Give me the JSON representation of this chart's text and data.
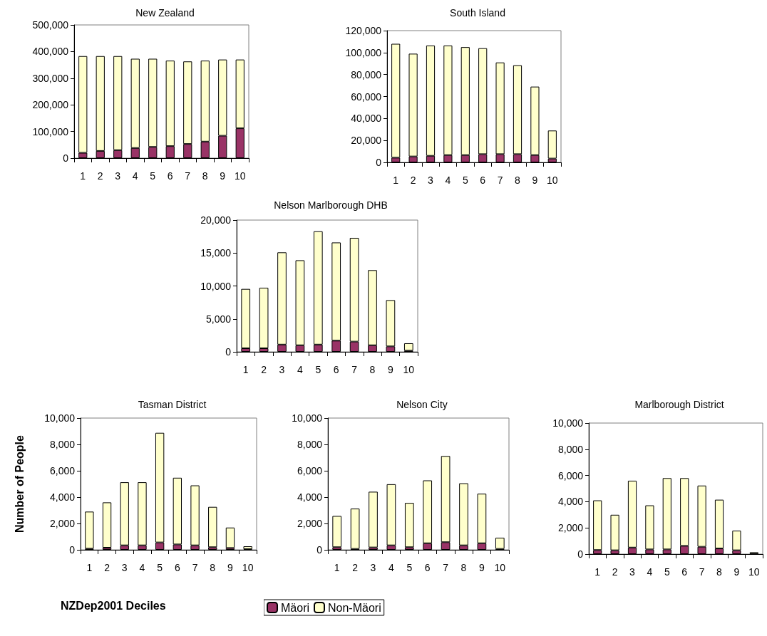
{
  "chart_data": [
    {
      "type": "bar",
      "title": "New Zealand",
      "stacked": true,
      "categories": [
        "1",
        "2",
        "3",
        "4",
        "5",
        "6",
        "7",
        "8",
        "9",
        "10"
      ],
      "ylim": [
        0,
        500000
      ],
      "yticks": [
        {
          "value": 0,
          "label": "0"
        },
        {
          "value": 100000,
          "label": "100,000"
        },
        {
          "value": 200000,
          "label": "200,000"
        },
        {
          "value": 300000,
          "label": "300,000"
        },
        {
          "value": 400000,
          "label": "400,000"
        },
        {
          "value": 500000,
          "label": "500,000"
        }
      ],
      "grid": false,
      "series": [
        {
          "color": "#993366",
          "values": [
            20000,
            27000,
            30000,
            38000,
            42000,
            45000,
            53000,
            62000,
            84000,
            112000
          ]
        },
        {
          "color": "#ffffcc",
          "values": [
            363000,
            356000,
            353000,
            335000,
            331000,
            321000,
            310000,
            304000,
            286000,
            258000
          ]
        }
      ]
    },
    {
      "type": "bar",
      "title": "South Island",
      "stacked": true,
      "categories": [
        "1",
        "2",
        "3",
        "4",
        "5",
        "6",
        "7",
        "8",
        "9",
        "10"
      ],
      "ylim": [
        0,
        120000
      ],
      "yticks": [
        {
          "value": 0,
          "label": "0"
        },
        {
          "value": 20000,
          "label": "20,000"
        },
        {
          "value": 40000,
          "label": "40,000"
        },
        {
          "value": 60000,
          "label": "60,000"
        },
        {
          "value": 80000,
          "label": "80,000"
        },
        {
          "value": 100000,
          "label": "100,000"
        },
        {
          "value": 120000,
          "label": "120,000"
        }
      ],
      "grid": false,
      "series": [
        {
          "color": "#993366",
          "values": [
            4300,
            5400,
            6000,
            6700,
            6700,
            7500,
            7500,
            7500,
            6700,
            3500
          ]
        },
        {
          "color": "#ffffcc",
          "values": [
            103700,
            93600,
            100500,
            99800,
            98300,
            96500,
            83500,
            81000,
            62300,
            25500
          ]
        }
      ]
    },
    {
      "type": "bar",
      "title": "Nelson Marlborough DHB",
      "stacked": true,
      "categories": [
        "1",
        "2",
        "3",
        "4",
        "5",
        "6",
        "7",
        "8",
        "9",
        "10"
      ],
      "ylim": [
        0,
        20000
      ],
      "yticks": [
        {
          "value": 0,
          "label": "0"
        },
        {
          "value": 5000,
          "label": "5,000"
        },
        {
          "value": 10000,
          "label": "10,000"
        },
        {
          "value": 15000,
          "label": "15,000"
        },
        {
          "value": 20000,
          "label": "20,000"
        }
      ],
      "grid": false,
      "series": [
        {
          "color": "#993366",
          "values": [
            540,
            540,
            1100,
            1000,
            1100,
            1700,
            1550,
            1000,
            830,
            180
          ]
        },
        {
          "color": "#ffffcc",
          "values": [
            9010,
            9190,
            14000,
            12900,
            17200,
            14900,
            15750,
            11400,
            7020,
            1120
          ]
        }
      ]
    },
    {
      "type": "bar",
      "title": "Tasman District",
      "ylabel": "Number of People",
      "xlabel": "NZDep2001 Deciles",
      "stacked": true,
      "categories": [
        "1",
        "2",
        "3",
        "4",
        "5",
        "6",
        "7",
        "8",
        "9",
        "10"
      ],
      "ylim": [
        0,
        10000
      ],
      "yticks": [
        {
          "value": 0,
          "label": "0"
        },
        {
          "value": 2000,
          "label": "2,000"
        },
        {
          "value": 4000,
          "label": "4,000"
        },
        {
          "value": 6000,
          "label": "6,000"
        },
        {
          "value": 8000,
          "label": "8,000"
        },
        {
          "value": 10000,
          "label": "10,000"
        }
      ],
      "grid": false,
      "series": [
        {
          "color": "#993366",
          "values": [
            90,
            160,
            340,
            340,
            560,
            410,
            340,
            200,
            140,
            50
          ]
        },
        {
          "color": "#ffffcc",
          "values": [
            2810,
            3440,
            4790,
            4790,
            8320,
            5060,
            4550,
            3060,
            1550,
            220
          ]
        }
      ]
    },
    {
      "type": "bar",
      "title": "Nelson City",
      "stacked": true,
      "legend": "bottom",
      "categories": [
        "1",
        "2",
        "3",
        "4",
        "5",
        "6",
        "7",
        "8",
        "9",
        "10"
      ],
      "ylim": [
        0,
        10000
      ],
      "yticks": [
        {
          "value": 0,
          "label": "0"
        },
        {
          "value": 2000,
          "label": "2,000"
        },
        {
          "value": 4000,
          "label": "4,000"
        },
        {
          "value": 6000,
          "label": "6,000"
        },
        {
          "value": 8000,
          "label": "8,000"
        },
        {
          "value": 10000,
          "label": "10,000"
        }
      ],
      "grid": false,
      "series": [
        {
          "name": "Mäori",
          "color": "#993366",
          "values": [
            200,
            70,
            180,
            340,
            200,
            500,
            580,
            340,
            500,
            70
          ]
        },
        {
          "name": "Non-Mäori",
          "color": "#ffffcc",
          "values": [
            2370,
            3060,
            4230,
            4640,
            3360,
            4770,
            6540,
            4710,
            3760,
            850
          ]
        }
      ]
    },
    {
      "type": "bar",
      "title": "Marlborough District",
      "stacked": true,
      "categories": [
        "1",
        "2",
        "3",
        "4",
        "5",
        "6",
        "7",
        "8",
        "9",
        "10"
      ],
      "ylim": [
        0,
        10000
      ],
      "yticks": [
        {
          "value": 0,
          "label": "0"
        },
        {
          "value": 2000,
          "label": "2,000"
        },
        {
          "value": 4000,
          "label": "4,000"
        },
        {
          "value": 6000,
          "label": "6,000"
        },
        {
          "value": 8000,
          "label": "8,000"
        },
        {
          "value": 10000,
          "label": "10,000"
        }
      ],
      "grid": false,
      "series": [
        {
          "color": "#993366",
          "values": [
            310,
            290,
            500,
            360,
            360,
            630,
            560,
            430,
            290,
            30
          ]
        },
        {
          "color": "#ffffcc",
          "values": [
            3790,
            2710,
            5100,
            3360,
            5440,
            5170,
            4670,
            3720,
            1500,
            110
          ]
        }
      ]
    }
  ]
}
